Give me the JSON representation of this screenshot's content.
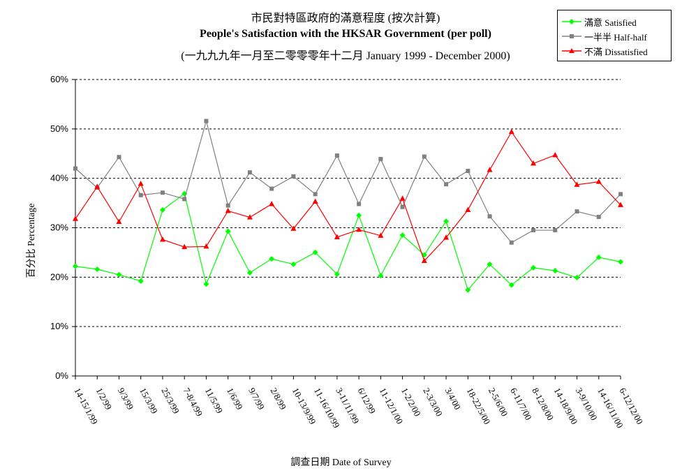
{
  "titles": {
    "line1": "市民對特區政府的滿意程度 (按次計算)",
    "line2": "People's Satisfaction with the HKSAR Government (per poll)",
    "line3": "(一九九九年一月至二零零零年十二月 January 1999 - December 2000)"
  },
  "axes": {
    "xlabel": "調查日期 Date of Survey",
    "ylabel": "百分比 Percentage"
  },
  "legend": [
    {
      "name": "滿意 Satisfied",
      "color": "#00ff00",
      "marker": "diamond"
    },
    {
      "name": "一半半 Half-half",
      "color": "#808080",
      "marker": "square"
    },
    {
      "name": "不滿 Dissatisfied",
      "color": "#ff0000",
      "marker": "triangle"
    }
  ],
  "chart_data": {
    "type": "line",
    "title": "People's Satisfaction with the HKSAR Government (per poll)",
    "xlabel": "調查日期 Date of Survey",
    "ylabel": "百分比 Percentage",
    "ylim": [
      0,
      60
    ],
    "yticks": [
      "0%",
      "10%",
      "20%",
      "30%",
      "40%",
      "50%",
      "60%"
    ],
    "grid": "horizontal dashed",
    "legend_position": "top-right",
    "categories": [
      "14-15/1/99",
      "1/2/99",
      "9/3/99",
      "15/3/99",
      "25/3/99",
      "7-8/4/99",
      "11/5/99",
      "1/6/99",
      "9/7/99",
      "2/8/99",
      "10-13/9/99",
      "11-16/10/99",
      "3-11/11/99",
      "6/12/99",
      "11-12/1/00",
      "1-2/2/00",
      "2-3/3/00",
      "3/4/00",
      "18-22/5/00",
      "2-5/6/00",
      "6-11/7/00",
      "8-12/8/00",
      "14-18/9/00",
      "3-9/10/00",
      "14-16/11/00",
      "6-12/12/00"
    ],
    "series": [
      {
        "name": "滿意 Satisfied",
        "color": "#00ff00",
        "values": [
          22.2,
          21.6,
          20.5,
          19.2,
          33.6,
          36.9,
          18.6,
          29.3,
          20.9,
          23.7,
          22.6,
          25.0,
          20.6,
          32.5,
          20.3,
          28.5,
          24.5,
          31.3,
          17.4,
          22.6,
          18.4,
          21.9,
          21.3,
          19.9,
          24.0,
          23.1
        ]
      },
      {
        "name": "一半半 Half-half",
        "color": "#808080",
        "values": [
          42.0,
          38.1,
          44.3,
          36.6,
          37.1,
          35.8,
          51.6,
          34.5,
          41.2,
          37.9,
          40.4,
          36.8,
          44.6,
          34.8,
          43.9,
          34.2,
          44.4,
          38.8,
          41.5,
          32.3,
          27.0,
          29.5,
          29.5,
          33.3,
          32.2,
          36.8
        ]
      },
      {
        "name": "不滿 Dissatisfied",
        "color": "#ff0000",
        "values": [
          31.8,
          38.3,
          31.2,
          38.9,
          27.6,
          26.1,
          26.2,
          33.4,
          32.1,
          34.8,
          29.8,
          35.3,
          28.1,
          29.6,
          28.4,
          35.9,
          23.3,
          28.0,
          33.6,
          41.7,
          49.4,
          43.0,
          44.7,
          38.7,
          39.3,
          34.6
        ]
      }
    ]
  }
}
